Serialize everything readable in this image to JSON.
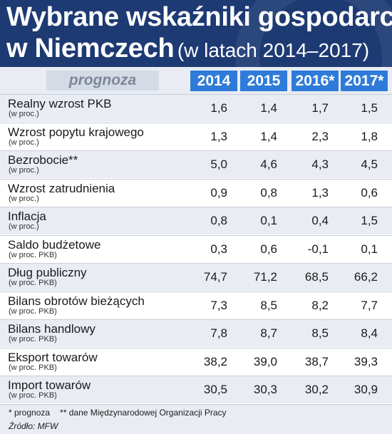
{
  "title": {
    "line1": "Wybrane wskaźniki gospodarcze",
    "line2_main": "w Niemczech",
    "line2_sub": "(w latach 2014–2017)"
  },
  "chart_data": {
    "type": "table",
    "forecast_label": "prognoza",
    "columns": [
      "2014",
      "2015",
      "2016*",
      "2017*"
    ],
    "rows": [
      {
        "label": "Realny wzrost PKB",
        "unit": "(w proc.)",
        "values": [
          "1,6",
          "1,4",
          "1,7",
          "1,5"
        ]
      },
      {
        "label": "Wzrost popytu krajowego",
        "unit": "(w proc.)",
        "values": [
          "1,3",
          "1,4",
          "2,3",
          "1,8"
        ]
      },
      {
        "label": "Bezrobocie**",
        "unit": "(w proc.)",
        "values": [
          "5,0",
          "4,6",
          "4,3",
          "4,5"
        ]
      },
      {
        "label": "Wzrost zatrudnienia",
        "unit": "(w proc.)",
        "values": [
          "0,9",
          "0,8",
          "1,3",
          "0,6"
        ]
      },
      {
        "label": "Inflacja",
        "unit": "(w proc.)",
        "values": [
          "0,8",
          "0,1",
          "0,4",
          "1,5"
        ]
      },
      {
        "label": "Saldo budżetowe",
        "unit": "(w proc. PKB)",
        "values": [
          "0,3",
          "0,6",
          "-0,1",
          "0,1"
        ]
      },
      {
        "label": "Dług publiczny",
        "unit": "(w proc. PKB)",
        "values": [
          "74,7",
          "71,2",
          "68,5",
          "66,2"
        ]
      },
      {
        "label": "Bilans obrotów bieżących",
        "unit": "(w proc. PKB)",
        "values": [
          "7,3",
          "8,5",
          "8,2",
          "7,7"
        ]
      },
      {
        "label": "Bilans handlowy",
        "unit": "(w proc. PKB)",
        "values": [
          "7,8",
          "8,7",
          "8,5",
          "8,4"
        ]
      },
      {
        "label": "Eksport towarów",
        "unit": "(w proc. PKB)",
        "values": [
          "38,2",
          "39,0",
          "38,7",
          "39,3"
        ]
      },
      {
        "label": "Import towarów",
        "unit": "(w proc. PKB)",
        "values": [
          "30,5",
          "30,3",
          "30,2",
          "30,9"
        ]
      }
    ],
    "colors": {
      "header_bg": "#1d3a73",
      "year_badge": "#2f7bd9",
      "row_shade": "#e9edf3"
    }
  },
  "footnotes": {
    "forecast": "* prognoza",
    "unemployment": "** dane Międzynarodowej Organizacji Pracy",
    "source": "Źródło: MFW"
  }
}
